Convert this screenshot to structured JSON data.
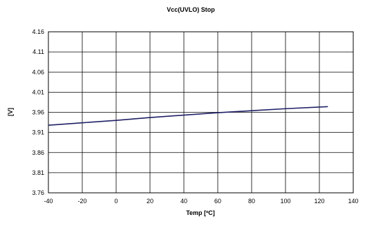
{
  "chart_data": {
    "type": "line",
    "title": "Vcc(UVLO) Stop",
    "xlabel": "Temp [ºC]",
    "ylabel": "[V]",
    "xlim": [
      -40,
      140
    ],
    "ylim": [
      3.76,
      4.16
    ],
    "x_ticks": [
      "-40",
      "-20",
      "0",
      "20",
      "40",
      "60",
      "80",
      "100",
      "120",
      "140"
    ],
    "y_ticks": [
      "4.16",
      "4.11",
      "4.06",
      "4.01",
      "3.96",
      "3.91",
      "3.86",
      "3.81",
      "3.76"
    ],
    "grid": true,
    "legend": "none",
    "series": [
      {
        "color": "#1f1f66",
        "x": [
          -40,
          -20,
          0,
          20,
          40,
          60,
          80,
          100,
          125
        ],
        "y": [
          3.928,
          3.934,
          3.94,
          3.947,
          3.953,
          3.959,
          3.964,
          3.969,
          3.974
        ]
      }
    ]
  }
}
